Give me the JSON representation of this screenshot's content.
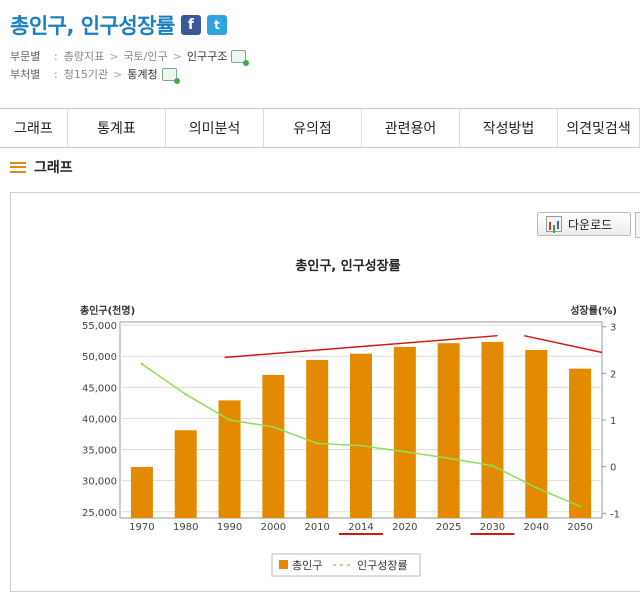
{
  "page": {
    "title": "총인구, 인구성장률",
    "share": {
      "facebook": "f",
      "twitter": "t"
    },
    "category": {
      "label": "부문별",
      "path": [
        "총량지표",
        "국토/인구",
        "인구구조"
      ]
    },
    "department": {
      "label": "부처별",
      "path": [
        "청15기관",
        "통계청"
      ]
    },
    "tabs": [
      "그래프",
      "통계표",
      "의미분석",
      "유의점",
      "관련용어",
      "작성방법",
      "의견및검색"
    ],
    "section_title": "그래프",
    "download_label": "다운로드"
  },
  "chart_data": {
    "type": "bar+line",
    "title": "총인구, 인구성장률",
    "ylabel_left": "총인구(천명)",
    "ylabel_right": "성장률(%)",
    "categories": [
      "1970",
      "1980",
      "1990",
      "2000",
      "2010",
      "2014",
      "2020",
      "2025",
      "2030",
      "2040",
      "2050"
    ],
    "left_ticks": [
      "55,000",
      "50,000",
      "45,000",
      "40,000",
      "35,000",
      "30,000",
      "25,000"
    ],
    "right_ticks": [
      "3",
      "2",
      "1",
      "0",
      "-1"
    ],
    "ylim_left": [
      24000,
      55500
    ],
    "ylim_right": [
      -1.1,
      3.1
    ],
    "series": [
      {
        "name": "총인구",
        "type": "bar",
        "color": "#e38a00",
        "values": [
          32200,
          38100,
          42900,
          47000,
          49400,
          50400,
          51500,
          52100,
          52300,
          51000,
          48000
        ]
      },
      {
        "name": "인구성장률",
        "type": "line",
        "color": "#8ee05a",
        "values": [
          2.2,
          1.55,
          1.0,
          0.85,
          0.5,
          0.45,
          0.32,
          0.18,
          0.02,
          -0.45,
          -0.85
        ]
      }
    ],
    "legend": [
      "총인구",
      "인구성장률"
    ],
    "legend_position": "bottom",
    "grid": true
  }
}
